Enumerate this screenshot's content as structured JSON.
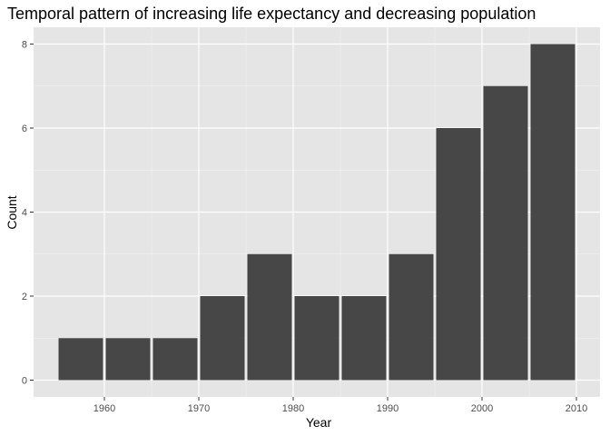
{
  "chart_data": {
    "type": "bar",
    "title": "Temporal pattern of increasing life expectancy and decreasing population",
    "xlabel": "Year",
    "ylabel": "Count",
    "bins": [
      {
        "start": 1955,
        "end": 1960,
        "count": 1
      },
      {
        "start": 1960,
        "end": 1965,
        "count": 1
      },
      {
        "start": 1965,
        "end": 1970,
        "count": 1
      },
      {
        "start": 1970,
        "end": 1975,
        "count": 2
      },
      {
        "start": 1975,
        "end": 1980,
        "count": 3
      },
      {
        "start": 1980,
        "end": 1985,
        "count": 2
      },
      {
        "start": 1985,
        "end": 1990,
        "count": 2
      },
      {
        "start": 1990,
        "end": 1995,
        "count": 3
      },
      {
        "start": 1995,
        "end": 2000,
        "count": 6
      },
      {
        "start": 2000,
        "end": 2005,
        "count": 7
      },
      {
        "start": 2005,
        "end": 2010,
        "count": 8
      }
    ],
    "xlim": [
      1952.5,
      2012.5
    ],
    "ylim": [
      -0.4,
      8.4
    ],
    "x_ticks": [
      1960,
      1970,
      1980,
      1990,
      2000,
      2010
    ],
    "y_ticks": [
      0,
      2,
      4,
      6,
      8
    ],
    "grid": true,
    "legend": "none",
    "colors": {
      "panel": "#e5e5e5",
      "grid_major": "#ffffff",
      "grid_minor": "#f2f2f2",
      "bar": "#474747"
    }
  }
}
